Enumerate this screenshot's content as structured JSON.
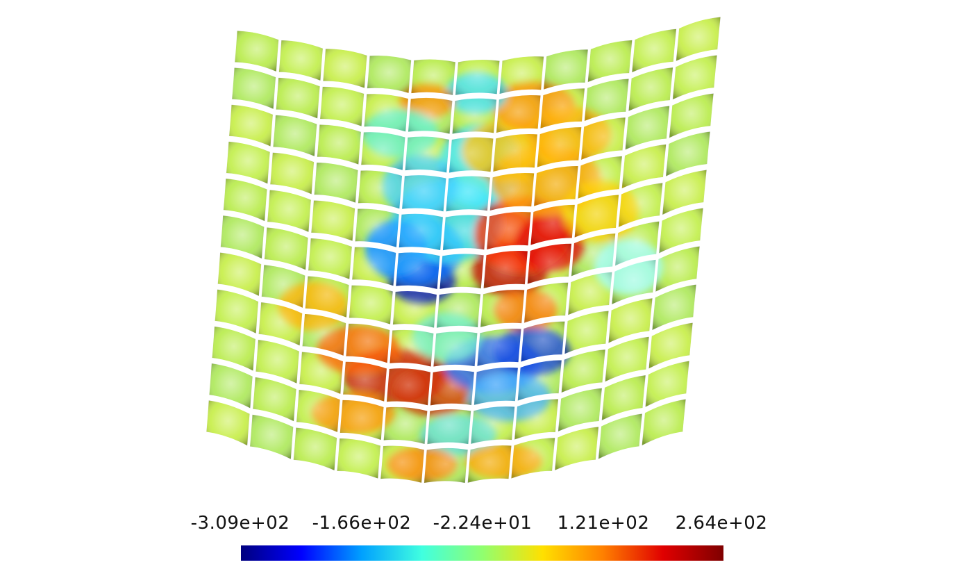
{
  "figure": {
    "subject": "woven-fabric-deformation-contour",
    "colormap": [
      "#00007f",
      "#0000ff",
      "#00a0ff",
      "#40ffe0",
      "#90ff70",
      "#ffe000",
      "#ff8000",
      "#e00000",
      "#7f0000"
    ],
    "color_range": [
      -309,
      264
    ]
  },
  "colorbar": {
    "tick_labels": [
      "-3.09e+02",
      "-1.66e+02",
      "-2.24e+01",
      "1.21e+02",
      "2.64e+02"
    ]
  }
}
